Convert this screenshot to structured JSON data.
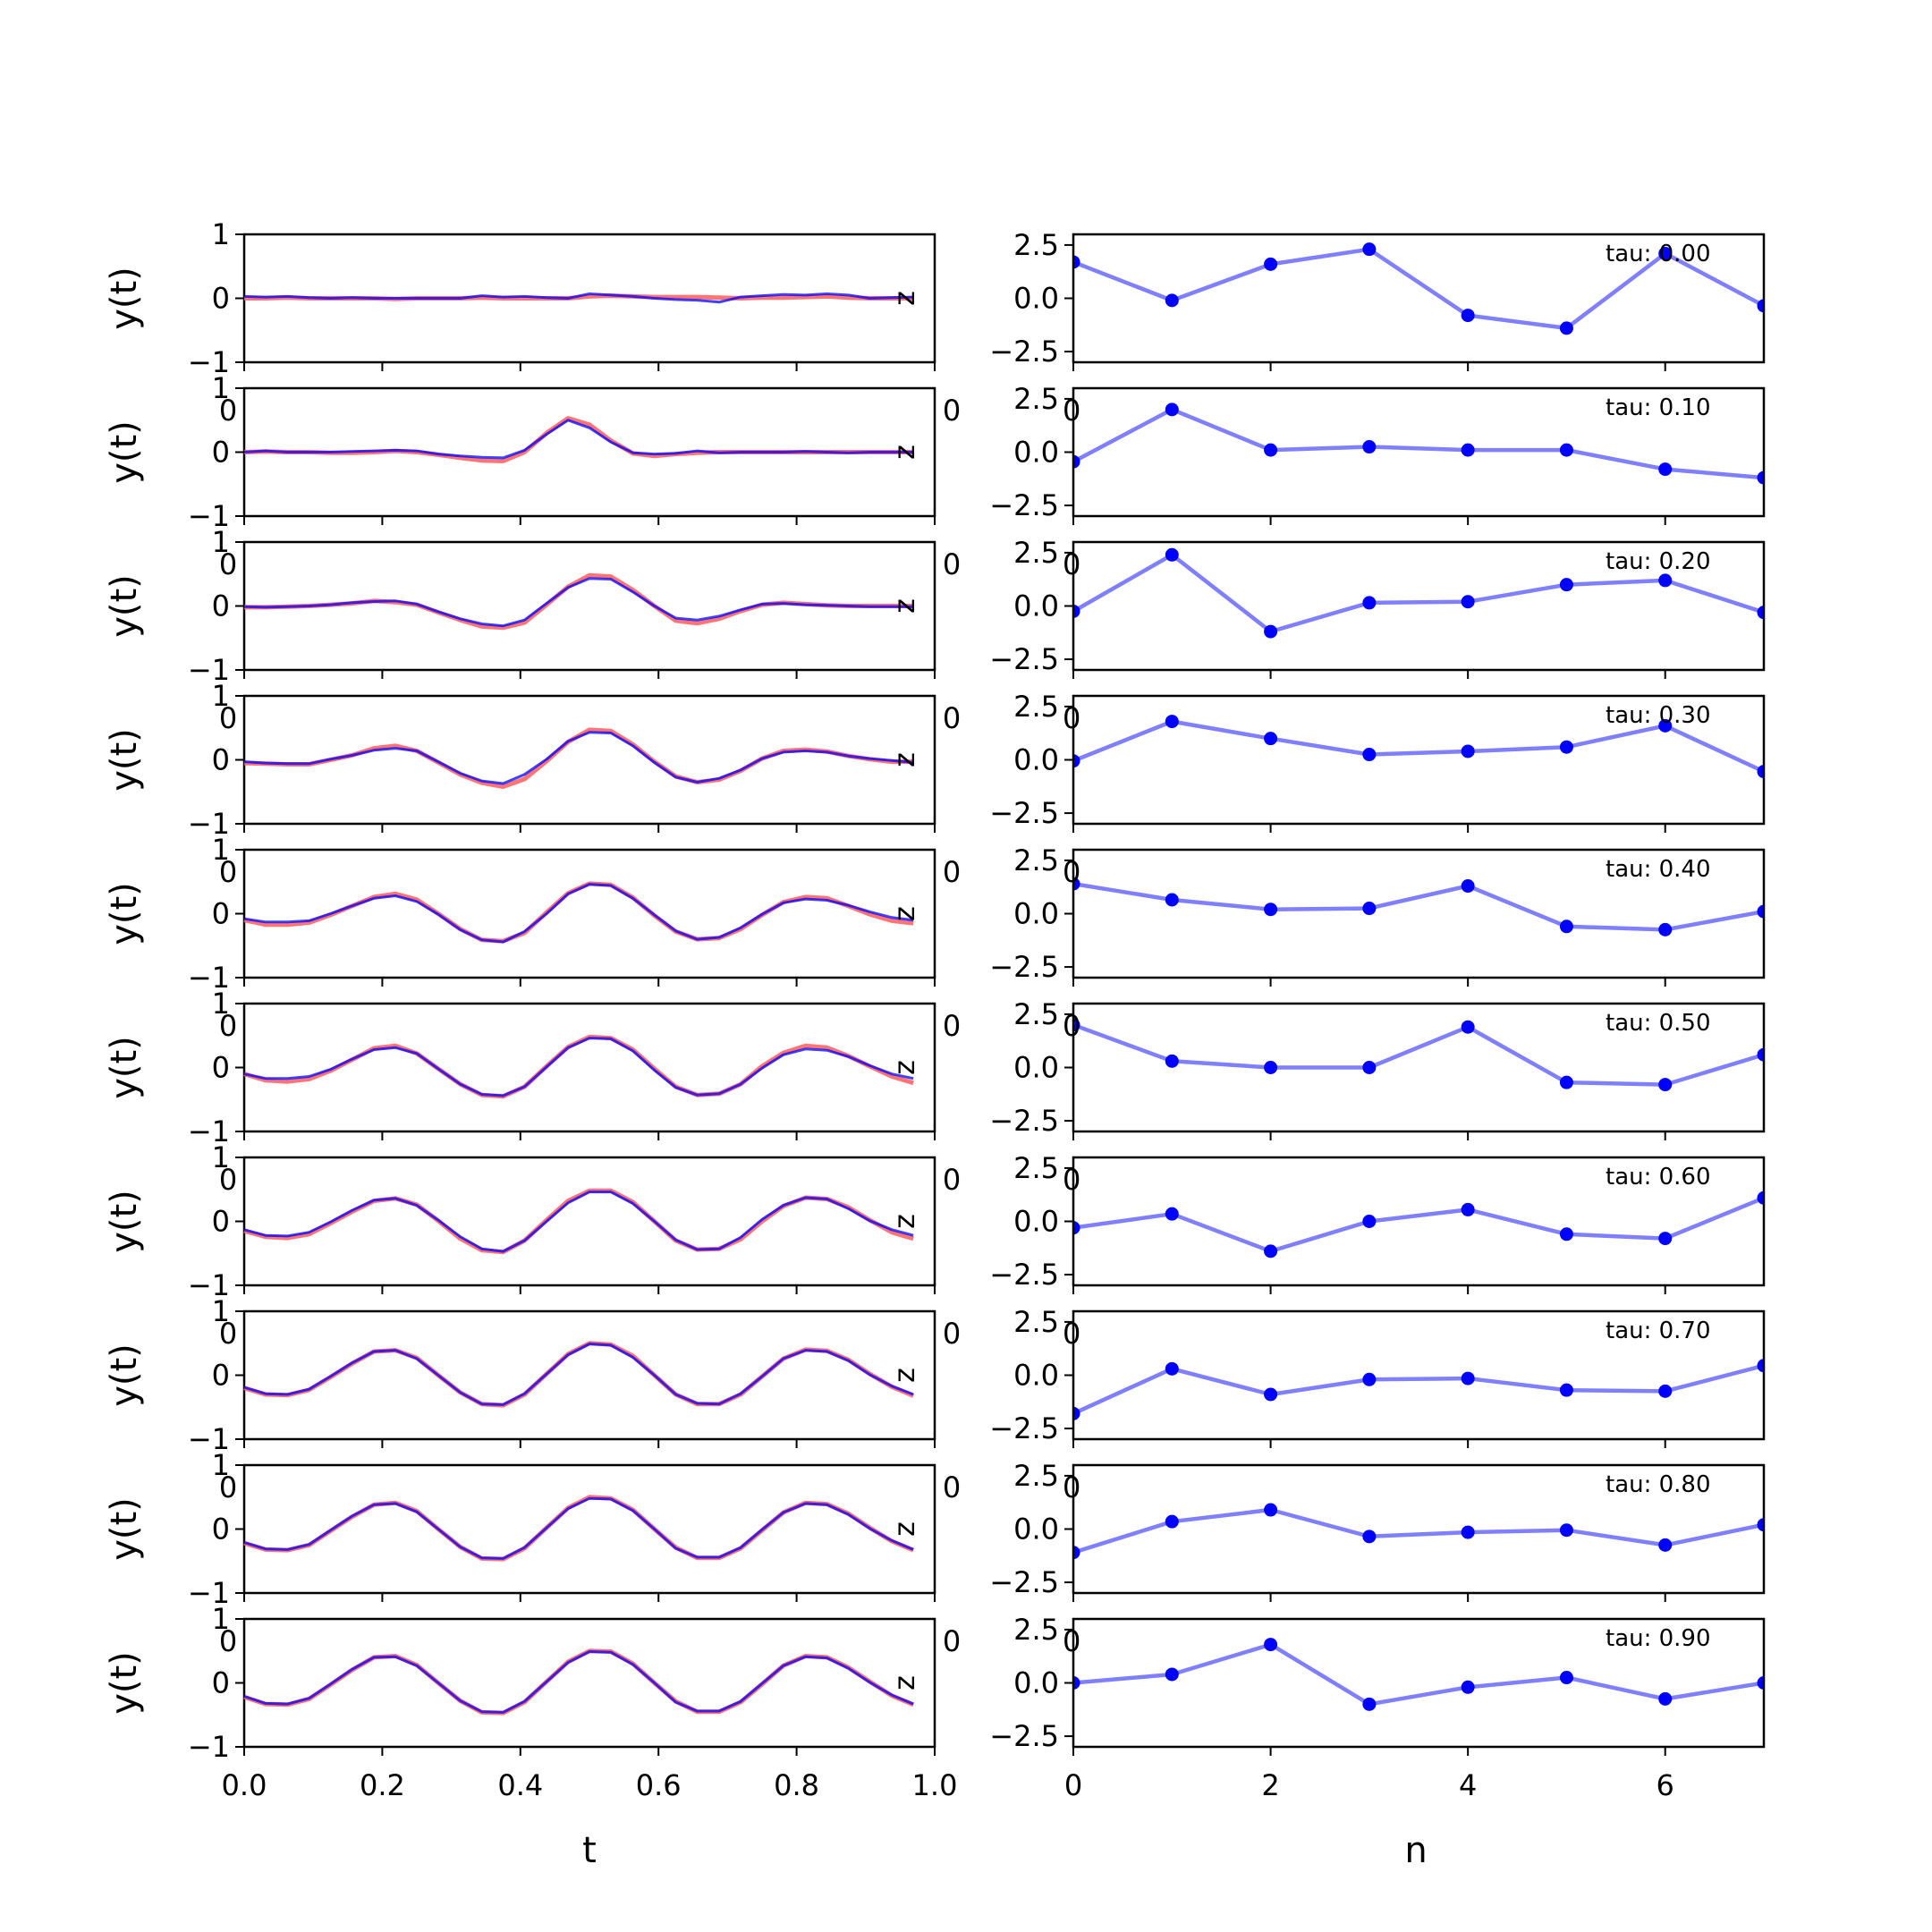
{
  "figure": {
    "left_xlabel": "t",
    "right_xlabel": "n",
    "left_ylabel": "y(t)",
    "z_label": "z",
    "stray_label": "0",
    "left_xticks": [
      "0.0",
      "0.2",
      "0.4",
      "0.6",
      "0.8",
      "1.0"
    ],
    "right_xticks": [
      "0",
      "2",
      "4",
      "6"
    ],
    "left_yticks": [
      "−1",
      "0",
      "1"
    ],
    "right_yticks": [
      "−2.5",
      "0.0",
      "2.5"
    ],
    "colors": {
      "target": "#ff6666",
      "prediction": "#0000ff",
      "latent_line": "#7f7fff",
      "latent_point": "#0000ff"
    }
  },
  "chart_data": [
    {
      "type": "line",
      "name": "left-column y(t) traces",
      "xlabel": "t",
      "ylabel": "y(t)",
      "xlim": [
        0,
        1
      ],
      "ylim": [
        -1,
        1
      ],
      "x": [
        0.0,
        0.031,
        0.063,
        0.094,
        0.125,
        0.156,
        0.188,
        0.219,
        0.25,
        0.281,
        0.313,
        0.344,
        0.375,
        0.406,
        0.438,
        0.469,
        0.5,
        0.531,
        0.563,
        0.594,
        0.625,
        0.656,
        0.688,
        0.719,
        0.75,
        0.781,
        0.813,
        0.844,
        0.875,
        0.906,
        0.938,
        0.969
      ],
      "panels": [
        {
          "red": [
            0.0,
            0.0,
            0.01,
            0.0,
            0.0,
            0.0,
            0.0,
            -0.01,
            0.0,
            0.0,
            0.0,
            0.01,
            0.0,
            0.0,
            0.0,
            0.0,
            0.03,
            0.04,
            0.03,
            0.02,
            0.02,
            0.02,
            0.01,
            0.0,
            0.01,
            0.01,
            0.02,
            0.03,
            0.01,
            0.0,
            0.0,
            0.0
          ],
          "blue": [
            0.03,
            0.02,
            0.03,
            0.01,
            0.0,
            0.01,
            0.0,
            0.0,
            0.0,
            0.0,
            0.0,
            0.04,
            0.02,
            0.03,
            0.01,
            0.0,
            0.07,
            0.05,
            0.03,
            0.0,
            -0.02,
            -0.03,
            -0.06,
            0.02,
            0.04,
            0.06,
            0.05,
            0.07,
            0.05,
            0.0,
            0.01,
            0.02
          ]
        },
        {
          "red": [
            0.0,
            0.01,
            0.0,
            0.0,
            -0.01,
            -0.01,
            0.0,
            0.02,
            0.0,
            -0.04,
            -0.09,
            -0.13,
            -0.14,
            0.0,
            0.3,
            0.53,
            0.43,
            0.18,
            -0.02,
            -0.06,
            -0.03,
            -0.01,
            0.0,
            0.0,
            0.0,
            0.0,
            0.0,
            0.0,
            0.0,
            0.0,
            0.0,
            0.0
          ],
          "blue": [
            0.0,
            0.02,
            0.0,
            0.0,
            0.0,
            0.01,
            0.02,
            0.03,
            0.02,
            -0.03,
            -0.06,
            -0.08,
            -0.09,
            0.03,
            0.28,
            0.5,
            0.38,
            0.16,
            -0.01,
            -0.03,
            -0.02,
            0.02,
            -0.01,
            0.0,
            0.0,
            0.0,
            0.01,
            0.0,
            -0.01,
            0.0,
            0.0,
            0.0
          ]
        },
        {
          "red": [
            -0.02,
            -0.02,
            -0.01,
            0.0,
            0.02,
            0.04,
            0.08,
            0.06,
            0.02,
            -0.1,
            -0.22,
            -0.32,
            -0.34,
            -0.26,
            0.02,
            0.3,
            0.48,
            0.46,
            0.25,
            0.0,
            -0.23,
            -0.27,
            -0.2,
            -0.08,
            0.02,
            0.05,
            0.03,
            0.01,
            0.0,
            0.0,
            0.0,
            0.0
          ],
          "blue": [
            -0.01,
            -0.02,
            -0.01,
            0.0,
            0.02,
            0.05,
            0.07,
            0.08,
            0.03,
            -0.09,
            -0.2,
            -0.28,
            -0.31,
            -0.22,
            0.04,
            0.29,
            0.43,
            0.42,
            0.22,
            0.0,
            -0.19,
            -0.22,
            -0.16,
            -0.06,
            0.03,
            0.04,
            0.02,
            0.01,
            0.0,
            -0.01,
            -0.01,
            -0.01
          ]
        },
        {
          "red": [
            -0.05,
            -0.06,
            -0.07,
            -0.07,
            0.0,
            0.07,
            0.18,
            0.22,
            0.14,
            -0.04,
            -0.23,
            -0.36,
            -0.42,
            -0.3,
            -0.02,
            0.28,
            0.47,
            0.45,
            0.24,
            -0.03,
            -0.26,
            -0.35,
            -0.31,
            -0.17,
            0.02,
            0.14,
            0.16,
            0.13,
            0.06,
            0.01,
            -0.03,
            -0.03
          ],
          "blue": [
            -0.03,
            -0.05,
            -0.06,
            -0.06,
            0.01,
            0.07,
            0.15,
            0.18,
            0.14,
            -0.03,
            -0.21,
            -0.33,
            -0.37,
            -0.23,
            0.01,
            0.29,
            0.43,
            0.42,
            0.22,
            -0.04,
            -0.27,
            -0.35,
            -0.29,
            -0.16,
            0.02,
            0.12,
            0.14,
            0.12,
            0.06,
            0.02,
            -0.01,
            -0.04
          ]
        },
        {
          "red": [
            -0.1,
            -0.17,
            -0.17,
            -0.14,
            -0.02,
            0.12,
            0.26,
            0.31,
            0.22,
            0.0,
            -0.24,
            -0.41,
            -0.43,
            -0.3,
            0.02,
            0.32,
            0.47,
            0.45,
            0.25,
            -0.03,
            -0.28,
            -0.4,
            -0.38,
            -0.24,
            -0.02,
            0.18,
            0.26,
            0.24,
            0.12,
            -0.01,
            -0.11,
            -0.15
          ],
          "blue": [
            -0.08,
            -0.13,
            -0.13,
            -0.11,
            0.0,
            0.12,
            0.24,
            0.28,
            0.19,
            -0.01,
            -0.25,
            -0.41,
            -0.44,
            -0.28,
            0.0,
            0.31,
            0.46,
            0.44,
            0.24,
            -0.02,
            -0.27,
            -0.4,
            -0.37,
            -0.22,
            -0.01,
            0.17,
            0.23,
            0.21,
            0.13,
            0.03,
            -0.06,
            -0.1
          ]
        },
        {
          "red": [
            -0.1,
            -0.2,
            -0.22,
            -0.18,
            -0.05,
            0.12,
            0.3,
            0.34,
            0.22,
            -0.02,
            -0.26,
            -0.43,
            -0.45,
            -0.3,
            0.02,
            0.32,
            0.48,
            0.46,
            0.28,
            -0.02,
            -0.3,
            -0.43,
            -0.41,
            -0.26,
            0.02,
            0.23,
            0.34,
            0.31,
            0.18,
            0.02,
            -0.14,
            -0.24
          ],
          "blue": [
            -0.1,
            -0.17,
            -0.17,
            -0.14,
            -0.03,
            0.13,
            0.28,
            0.31,
            0.22,
            -0.02,
            -0.26,
            -0.42,
            -0.44,
            -0.3,
            0.01,
            0.31,
            0.46,
            0.45,
            0.26,
            -0.04,
            -0.31,
            -0.43,
            -0.41,
            -0.26,
            -0.01,
            0.2,
            0.29,
            0.27,
            0.17,
            0.03,
            -0.1,
            -0.17
          ]
        },
        {
          "red": [
            -0.15,
            -0.24,
            -0.26,
            -0.2,
            -0.03,
            0.15,
            0.32,
            0.36,
            0.26,
            0.01,
            -0.27,
            -0.45,
            -0.48,
            -0.3,
            0.02,
            0.32,
            0.48,
            0.48,
            0.3,
            0.0,
            -0.3,
            -0.44,
            -0.43,
            -0.28,
            0.0,
            0.24,
            0.37,
            0.35,
            0.22,
            0.02,
            -0.17,
            -0.27
          ],
          "blue": [
            -0.13,
            -0.22,
            -0.23,
            -0.17,
            -0.01,
            0.17,
            0.33,
            0.36,
            0.25,
            0.02,
            -0.24,
            -0.43,
            -0.47,
            -0.3,
            0.0,
            0.29,
            0.46,
            0.46,
            0.28,
            0.0,
            -0.29,
            -0.44,
            -0.43,
            -0.25,
            0.03,
            0.25,
            0.37,
            0.35,
            0.2,
            0.01,
            -0.13,
            -0.22
          ]
        },
        {
          "red": [
            -0.2,
            -0.3,
            -0.31,
            -0.23,
            -0.03,
            0.18,
            0.37,
            0.39,
            0.27,
            0.0,
            -0.27,
            -0.45,
            -0.47,
            -0.3,
            0.02,
            0.33,
            0.5,
            0.48,
            0.3,
            0.0,
            -0.3,
            -0.45,
            -0.45,
            -0.3,
            -0.02,
            0.26,
            0.4,
            0.38,
            0.24,
            0.02,
            -0.18,
            -0.32
          ],
          "blue": [
            -0.19,
            -0.29,
            -0.3,
            -0.22,
            -0.02,
            0.19,
            0.37,
            0.39,
            0.26,
            0.0,
            -0.27,
            -0.45,
            -0.46,
            -0.29,
            0.02,
            0.32,
            0.49,
            0.47,
            0.28,
            0.0,
            -0.3,
            -0.44,
            -0.45,
            -0.29,
            -0.02,
            0.26,
            0.39,
            0.37,
            0.23,
            0.01,
            -0.17,
            -0.3
          ]
        },
        {
          "red": [
            -0.22,
            -0.32,
            -0.33,
            -0.25,
            -0.03,
            0.19,
            0.38,
            0.41,
            0.28,
            0.0,
            -0.28,
            -0.46,
            -0.47,
            -0.3,
            0.02,
            0.33,
            0.5,
            0.48,
            0.3,
            0.0,
            -0.29,
            -0.45,
            -0.45,
            -0.3,
            -0.02,
            0.26,
            0.41,
            0.39,
            0.24,
            0.02,
            -0.19,
            -0.33
          ],
          "blue": [
            -0.21,
            -0.31,
            -0.32,
            -0.24,
            -0.02,
            0.2,
            0.38,
            0.4,
            0.27,
            0.0,
            -0.28,
            -0.45,
            -0.46,
            -0.29,
            0.02,
            0.32,
            0.48,
            0.47,
            0.29,
            0.0,
            -0.3,
            -0.44,
            -0.44,
            -0.29,
            -0.01,
            0.26,
            0.4,
            0.38,
            0.23,
            0.01,
            -0.18,
            -0.32
          ]
        },
        {
          "red": [
            -0.22,
            -0.33,
            -0.34,
            -0.25,
            -0.03,
            0.2,
            0.4,
            0.42,
            0.28,
            0.0,
            -0.28,
            -0.46,
            -0.47,
            -0.3,
            0.02,
            0.33,
            0.5,
            0.49,
            0.3,
            0.0,
            -0.29,
            -0.45,
            -0.45,
            -0.3,
            -0.02,
            0.27,
            0.42,
            0.4,
            0.24,
            0.02,
            -0.2,
            -0.34
          ],
          "blue": [
            -0.21,
            -0.32,
            -0.33,
            -0.24,
            -0.02,
            0.21,
            0.4,
            0.41,
            0.27,
            0.0,
            -0.28,
            -0.45,
            -0.46,
            -0.29,
            0.02,
            0.32,
            0.49,
            0.48,
            0.29,
            0.0,
            -0.3,
            -0.44,
            -0.44,
            -0.29,
            -0.01,
            0.27,
            0.41,
            0.39,
            0.23,
            0.01,
            -0.19,
            -0.33
          ]
        }
      ]
    },
    {
      "type": "line",
      "name": "right-column latent z(n)",
      "xlabel": "n",
      "xlim": [
        0,
        7
      ],
      "ylim": [
        -3,
        3
      ],
      "x": [
        0,
        1,
        2,
        3,
        4,
        5,
        6,
        7
      ],
      "panels": [
        {
          "tau": "tau: 0.00",
          "values": [
            1.7,
            -0.1,
            1.6,
            2.3,
            -0.8,
            -1.4,
            2.1,
            -0.35
          ]
        },
        {
          "tau": "tau: 0.10",
          "values": [
            -0.45,
            2.0,
            0.1,
            0.25,
            0.1,
            0.1,
            -0.8,
            -1.2
          ]
        },
        {
          "tau": "tau: 0.20",
          "values": [
            -0.25,
            2.4,
            -1.2,
            0.15,
            0.2,
            1.0,
            1.2,
            -0.3
          ]
        },
        {
          "tau": "tau: 0.30",
          "values": [
            -0.05,
            1.8,
            1.0,
            0.25,
            0.4,
            0.6,
            1.6,
            -0.55
          ]
        },
        {
          "tau": "tau: 0.40",
          "values": [
            1.4,
            0.65,
            0.2,
            0.25,
            1.3,
            -0.6,
            -0.75,
            0.1
          ]
        },
        {
          "tau": "tau: 0.50",
          "values": [
            2.0,
            0.3,
            0.0,
            0.0,
            1.9,
            -0.7,
            -0.8,
            0.6
          ]
        },
        {
          "tau": "tau: 0.60",
          "values": [
            -0.3,
            0.35,
            -1.4,
            0.0,
            0.55,
            -0.6,
            -0.8,
            1.1
          ]
        },
        {
          "tau": "tau: 0.70",
          "values": [
            -1.8,
            0.3,
            -0.9,
            -0.2,
            -0.15,
            -0.7,
            -0.75,
            0.45
          ]
        },
        {
          "tau": "tau: 0.80",
          "values": [
            -1.1,
            0.35,
            0.9,
            -0.35,
            -0.15,
            -0.05,
            -0.75,
            0.2
          ]
        },
        {
          "tau": "tau: 0.90",
          "values": [
            0.0,
            0.4,
            1.8,
            -1.0,
            -0.2,
            0.25,
            -0.75,
            0.0
          ]
        }
      ]
    }
  ]
}
